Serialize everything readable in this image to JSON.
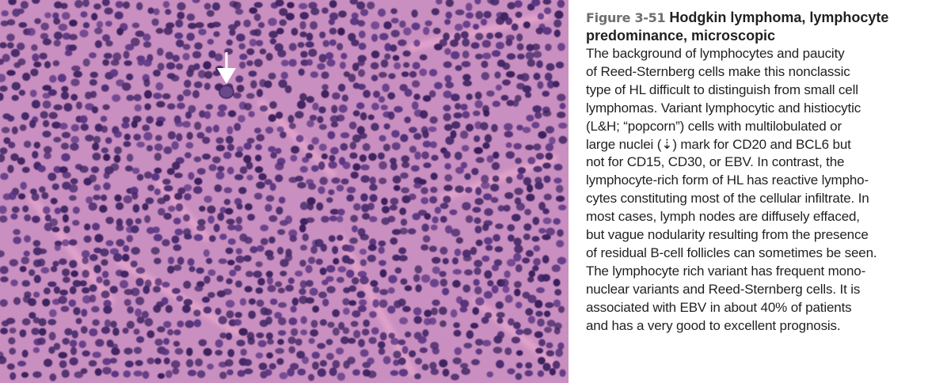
{
  "figure": {
    "label": "Figure 3-51",
    "title": "Hodgkin lymphoma, lymphocyte predominance, microscopic",
    "caption_lines": [
      "The background of lymphocytes and paucity",
      "of Reed-Sternberg cells make this nonclassic",
      "type of HL difficult to distinguish from small cell",
      "lymphomas. Variant lymphocytic and histiocytic",
      "(L&H; “popcorn”) cells with multilobulated or",
      "large nuclei (⇣) mark for CD20 and BCL6 but",
      "not for CD15, CD30, or EBV. In contrast, the",
      "lymphocyte-rich form of HL has reactive lympho-",
      "cytes constituting most of the cellular infiltrate. In",
      "most cases, lymph nodes are diffusely effaced,",
      "but vague nodularity resulting from the presence",
      "of residual B-cell follicles can sometimes be seen.",
      "The lymphocyte rich variant has frequent mono-",
      "nuclear variants and Reed-Sternberg cells. It is",
      "associated with EBV in about 40% of patients",
      "and has a very good to excellent prognosis."
    ]
  },
  "image": {
    "icon": "histology-micrograph",
    "arrow_icon": "down-arrow-icon",
    "colors": {
      "background_stain": "#c98fc0",
      "nucleus": "#4a2a6e",
      "nucleus_dark": "#3a1f5c",
      "stroma": "#e7a6cc",
      "arrow": "#ffffff"
    }
  }
}
